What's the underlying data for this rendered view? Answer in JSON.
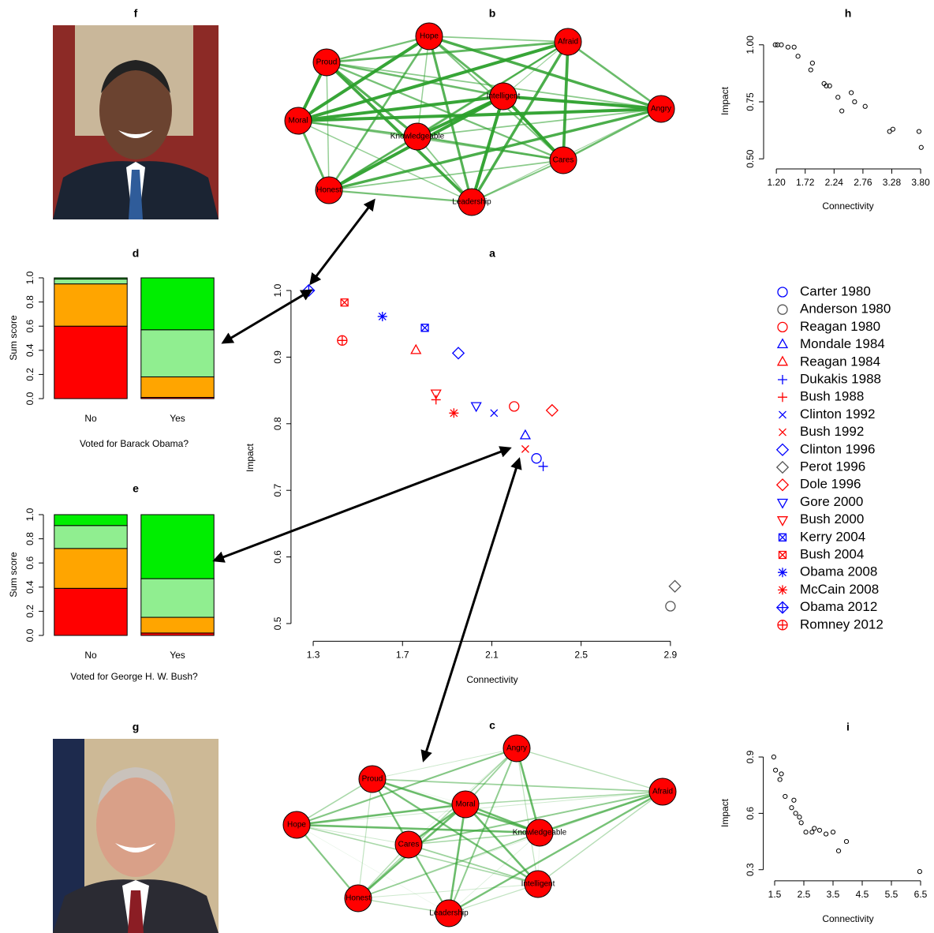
{
  "chart_data": [
    {
      "type": "scatter",
      "title": "a",
      "xlabel": "Connectivity",
      "ylabel": "Impact",
      "xlim": [
        1.25,
        2.94
      ],
      "ylim": [
        0.49,
        1.01
      ],
      "xticks": [
        1.3,
        1.7,
        2.1,
        2.5,
        2.9
      ],
      "yticks": [
        0.5,
        0.6,
        0.7,
        0.8,
        0.9,
        {
          "value": 1.0,
          "label": "1.0"
        }
      ],
      "legend": "right",
      "series": [
        {
          "name": "Carter 1980",
          "color": "#0000ff",
          "marker": "circle",
          "x": [
            2.3
          ],
          "values": [
            0.748
          ]
        },
        {
          "name": "Anderson 1980",
          "color": "#555555",
          "marker": "circle",
          "x": [
            2.9
          ],
          "values": [
            0.526
          ]
        },
        {
          "name": "Reagan 1980",
          "color": "#ff0000",
          "marker": "circle",
          "x": [
            2.2
          ],
          "values": [
            0.826
          ]
        },
        {
          "name": "Mondale 1984",
          "color": "#0000ff",
          "marker": "triangle",
          "x": [
            2.25
          ],
          "values": [
            0.782
          ]
        },
        {
          "name": "Reagan 1984",
          "color": "#ff0000",
          "marker": "triangle",
          "x": [
            1.76
          ],
          "values": [
            0.91
          ]
        },
        {
          "name": "Dukakis 1988",
          "color": "#0000ff",
          "marker": "plus",
          "x": [
            2.33
          ],
          "values": [
            0.736
          ]
        },
        {
          "name": "Bush 1988",
          "color": "#ff0000",
          "marker": "plus",
          "x": [
            1.85
          ],
          "values": [
            0.836
          ]
        },
        {
          "name": "Clinton 1992",
          "color": "#0000ff",
          "marker": "cross",
          "x": [
            2.11
          ],
          "values": [
            0.816
          ]
        },
        {
          "name": "Bush 1992",
          "color": "#ff0000",
          "marker": "cross",
          "x": [
            2.25
          ],
          "values": [
            0.762
          ]
        },
        {
          "name": "Clinton 1996",
          "color": "#0000ff",
          "marker": "diamond",
          "x": [
            1.95
          ],
          "values": [
            0.906
          ]
        },
        {
          "name": "Perot 1996",
          "color": "#555555",
          "marker": "diamond",
          "x": [
            2.92
          ],
          "values": [
            0.556
          ]
        },
        {
          "name": "Dole 1996",
          "color": "#ff0000",
          "marker": "diamond",
          "x": [
            2.37
          ],
          "values": [
            0.82
          ]
        },
        {
          "name": "Gore 2000",
          "color": "#0000ff",
          "marker": "nabla",
          "x": [
            2.03
          ],
          "values": [
            0.827
          ]
        },
        {
          "name": "Bush 2000",
          "color": "#ff0000",
          "marker": "nabla",
          "x": [
            1.85
          ],
          "values": [
            0.846
          ]
        },
        {
          "name": "Kerry 2004",
          "color": "#0000ff",
          "marker": "square-x",
          "x": [
            1.8
          ],
          "values": [
            0.944
          ]
        },
        {
          "name": "Bush 2004",
          "color": "#ff0000",
          "marker": "square-x",
          "x": [
            1.44
          ],
          "values": [
            0.982
          ]
        },
        {
          "name": "Obama 2008",
          "color": "#0000ff",
          "marker": "asterisk",
          "x": [
            1.61
          ],
          "values": [
            0.961
          ]
        },
        {
          "name": "McCain 2008",
          "color": "#ff0000",
          "marker": "asterisk",
          "x": [
            1.93
          ],
          "values": [
            0.816
          ]
        },
        {
          "name": "Obama 2012",
          "color": "#0000ff",
          "marker": "diamond-plus",
          "x": [
            1.28
          ],
          "values": [
            1.0
          ]
        },
        {
          "name": "Romney 2012",
          "color": "#ff0000",
          "marker": "circle-plus",
          "x": [
            1.43
          ],
          "values": [
            0.925
          ]
        }
      ]
    },
    {
      "type": "network",
      "title": "b",
      "color": "#2ca02c",
      "nodes": [
        "Hope",
        "Afraid",
        "Proud",
        "Intelligent",
        "Angry",
        "Moral",
        "Knowledgeable",
        "Cares",
        "Honest",
        "Leadership"
      ]
    },
    {
      "type": "network",
      "title": "c",
      "color": "#2ca02c",
      "nodes": [
        "Angry",
        "Proud",
        "Afraid",
        "Moral",
        "Hope",
        "Knowledgeable",
        "Cares",
        "Intelligent",
        "Honest",
        "Leadership"
      ]
    },
    {
      "type": "stacked-bar",
      "title": "d",
      "xlabel": "Voted for Barack Obama?",
      "ylabel": "Sum score",
      "categories": [
        "No",
        "Yes"
      ],
      "ylim": [
        0,
        1
      ],
      "yticks": [
        {
          "value": 0,
          "label": "0.0"
        },
        0.2,
        0.4,
        0.6,
        0.8,
        {
          "value": 1,
          "label": "1.0"
        }
      ],
      "series": [
        {
          "color": "#ff0000",
          "values": [
            0.6,
            0.01
          ]
        },
        {
          "color": "#ffa500",
          "values": [
            0.35,
            0.17
          ]
        },
        {
          "color": "#90ee90",
          "values": [
            0.04,
            0.39
          ]
        },
        {
          "color": "#00ee00",
          "values": [
            0.01,
            0.43
          ]
        }
      ]
    },
    {
      "type": "stacked-bar",
      "title": "e",
      "xlabel": "Voted for George H. W. Bush?",
      "ylabel": "Sum score",
      "categories": [
        "No",
        "Yes"
      ],
      "ylim": [
        0,
        1
      ],
      "yticks": [
        {
          "value": 0,
          "label": "0.0"
        },
        0.2,
        0.4,
        0.6,
        0.8,
        {
          "value": 1,
          "label": "1.0"
        }
      ],
      "series": [
        {
          "color": "#ff0000",
          "values": [
            0.39,
            0.02
          ]
        },
        {
          "color": "#ffa500",
          "values": [
            0.33,
            0.13
          ]
        },
        {
          "color": "#90ee90",
          "values": [
            0.19,
            0.32
          ]
        },
        {
          "color": "#00ee00",
          "values": [
            0.09,
            0.53
          ]
        }
      ]
    },
    {
      "type": "image",
      "title": "f"
    },
    {
      "type": "image",
      "title": "g"
    },
    {
      "type": "scatter",
      "title": "h",
      "xlabel": "Connectivity",
      "ylabel": "Impact",
      "color": "#000000",
      "marker": "circle",
      "xlim": [
        1.07,
        3.87
      ],
      "ylim": [
        0.48,
        1.02
      ],
      "xticks": [
        {
          "value": 1.2,
          "label": "1.20"
        },
        1.72,
        2.24,
        2.76,
        3.28,
        {
          "value": 3.8,
          "label": "3.80"
        }
      ],
      "yticks": [
        {
          "value": 0.5,
          "label": "0.50"
        },
        0.75,
        {
          "value": 1,
          "label": "1.00"
        }
      ],
      "x": [
        1.18,
        1.22,
        1.29,
        1.41,
        1.52,
        1.59,
        1.85,
        1.82,
        2.06,
        2.1,
        2.16,
        2.31,
        2.38,
        2.55,
        2.61,
        2.8,
        3.24,
        3.3,
        3.77,
        3.81
      ],
      "values": [
        1.0,
        1.0,
        1.0,
        0.99,
        0.99,
        0.95,
        0.92,
        0.89,
        0.83,
        0.82,
        0.82,
        0.77,
        0.71,
        0.79,
        0.75,
        0.73,
        0.62,
        0.63,
        0.62,
        0.55
      ]
    },
    {
      "type": "scatter",
      "title": "i",
      "xlabel": "Connectivity",
      "ylabel": "Impact",
      "color": "#000000",
      "marker": "circle",
      "xlim": [
        1.3,
        6.6
      ],
      "ylim": [
        0.27,
        0.93
      ],
      "xticks": [
        1.5,
        2.5,
        3.5,
        4.5,
        5.5,
        6.5
      ],
      "yticks": [
        0.3,
        0.6,
        0.9
      ],
      "x": [
        1.47,
        1.53,
        1.73,
        1.68,
        1.86,
        2.08,
        2.16,
        2.22,
        2.35,
        2.41,
        2.57,
        2.78,
        2.86,
        3.04,
        3.26,
        3.5,
        3.69,
        3.96,
        6.47
      ],
      "values": [
        0.9,
        0.83,
        0.81,
        0.78,
        0.69,
        0.63,
        0.67,
        0.6,
        0.58,
        0.55,
        0.5,
        0.5,
        0.52,
        0.51,
        0.49,
        0.5,
        0.4,
        0.45,
        0.29
      ]
    }
  ]
}
